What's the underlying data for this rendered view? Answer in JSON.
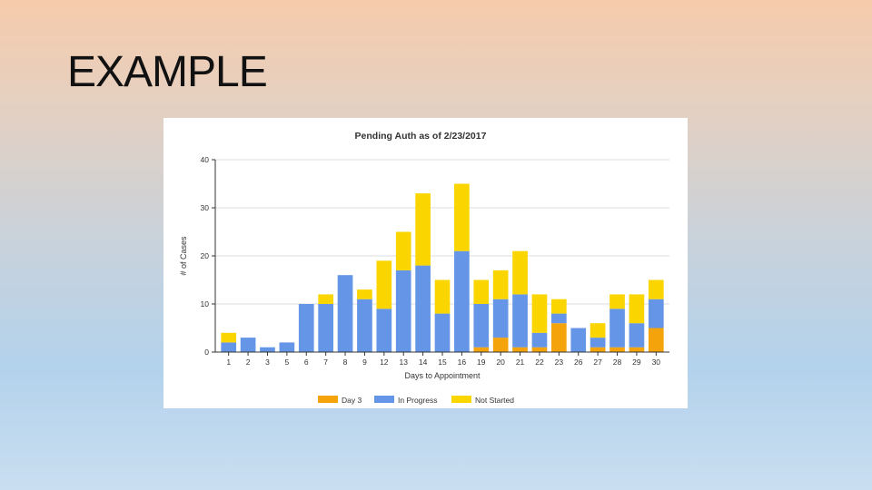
{
  "slide": {
    "title": "EXAMPLE"
  },
  "chart_data": {
    "type": "bar",
    "stacked": true,
    "title": "Pending Auth as of 2/23/2017",
    "xlabel": "Days to Appointment",
    "ylabel": "# of Cases",
    "ylim": [
      0,
      40
    ],
    "yticks": [
      0,
      10,
      20,
      30,
      40
    ],
    "grid": true,
    "legend_position": "bottom",
    "categories": [
      "1",
      "2",
      "3",
      "5",
      "6",
      "7",
      "8",
      "9",
      "12",
      "13",
      "14",
      "15",
      "16",
      "19",
      "20",
      "21",
      "22",
      "23",
      "26",
      "27",
      "28",
      "29",
      "30"
    ],
    "series": [
      {
        "name": "Day 3",
        "color": "#f5a30a",
        "values": [
          0,
          0,
          0,
          0,
          0,
          0,
          0,
          0,
          0,
          0,
          0,
          0,
          0,
          1,
          3,
          1,
          1,
          6,
          0,
          1,
          1,
          1,
          5
        ]
      },
      {
        "name": "In Progress",
        "color": "#6495e6",
        "values": [
          2,
          3,
          1,
          2,
          10,
          10,
          16,
          11,
          9,
          17,
          18,
          8,
          21,
          9,
          8,
          11,
          3,
          2,
          5,
          2,
          8,
          5,
          6
        ]
      },
      {
        "name": "Not Started",
        "color": "#fad500",
        "values": [
          2,
          0,
          0,
          0,
          0,
          2,
          0,
          2,
          10,
          8,
          15,
          7,
          14,
          5,
          6,
          9,
          8,
          3,
          0,
          3,
          3,
          6,
          4
        ]
      }
    ]
  }
}
